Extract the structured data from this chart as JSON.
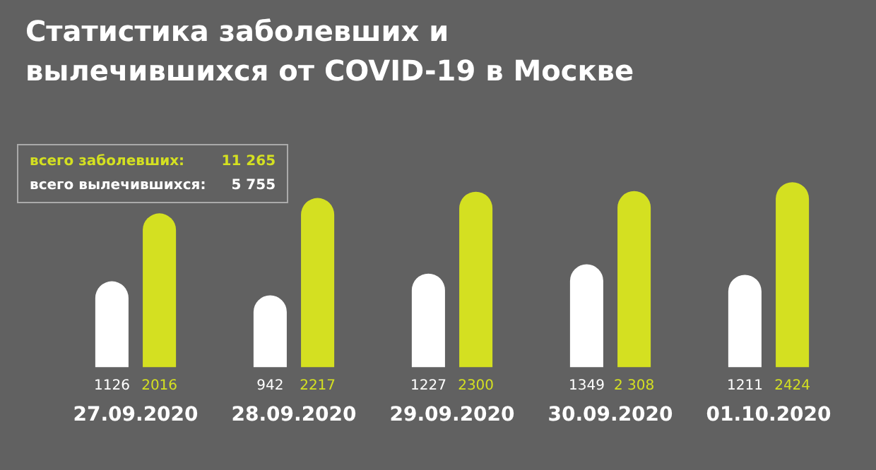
{
  "chart_data": {
    "type": "bar",
    "title": "Статистика заболевших и вылечившихся от COVID-19 в Москве",
    "categories": [
      "27.09.2020",
      "28.09.2020",
      "29.09.2020",
      "30.09.2020",
      "01.10.2020"
    ],
    "series": [
      {
        "name": "всего вылечившихся:",
        "color": "#ffffff",
        "values": [
          1126,
          942,
          1227,
          1349,
          1211
        ],
        "value_labels": [
          "1126",
          "942",
          "1227",
          "1349",
          "1211"
        ]
      },
      {
        "name": "всего заболевших:",
        "color": "#d4e021",
        "values": [
          2016,
          2217,
          2300,
          2308,
          2424
        ],
        "value_labels": [
          "2016",
          "2217",
          "2300",
          "2 308",
          "2424"
        ]
      }
    ],
    "annotations": [
      "11 265",
      "5 755"
    ],
    "legend": "top left",
    "grid": false,
    "tick_labels": "x"
  }
}
